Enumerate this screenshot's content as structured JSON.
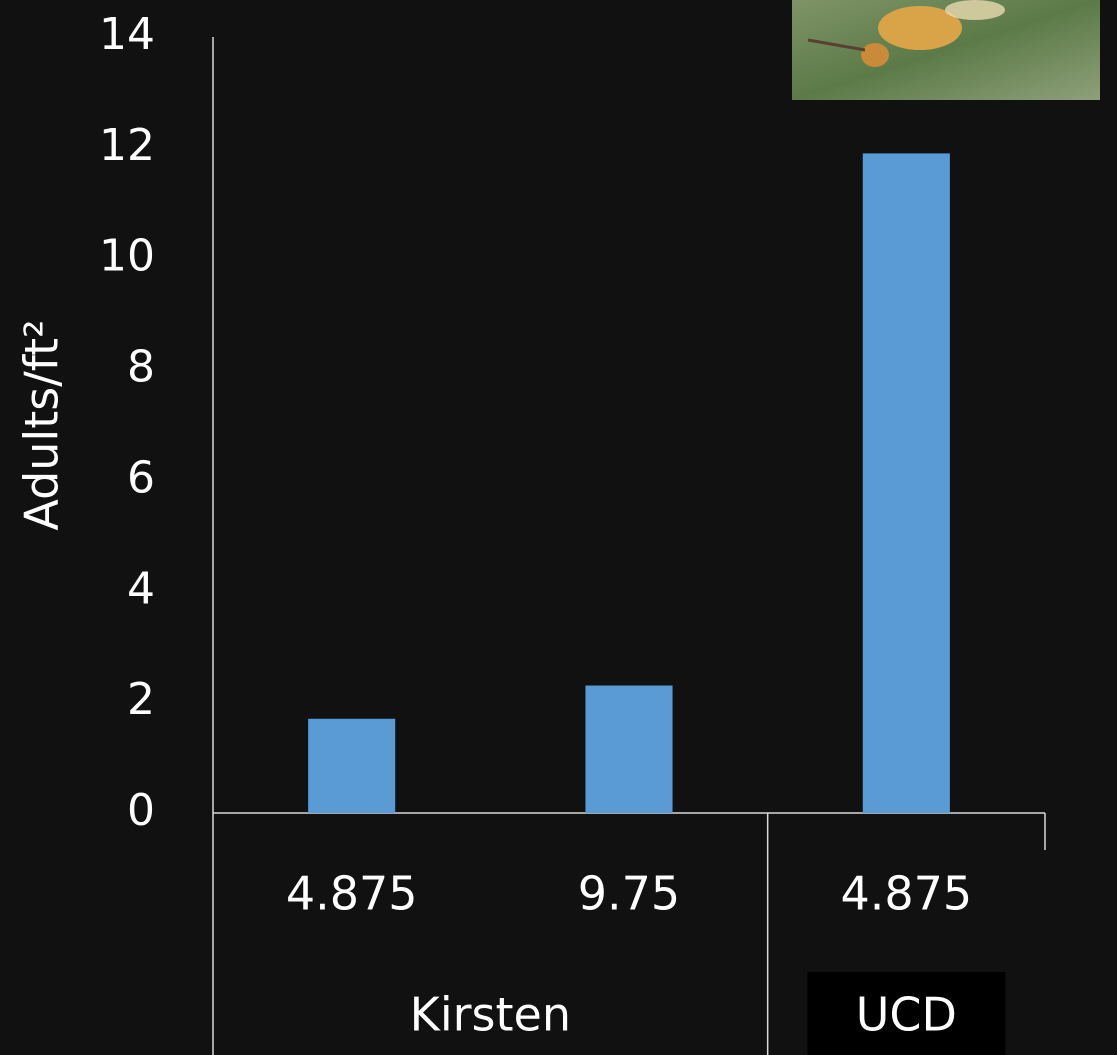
{
  "chart_data": {
    "type": "bar",
    "y_label": "Adults/ft²",
    "groups": [
      {
        "label": "Kirsten",
        "categories": [
          "4.875",
          "9.75"
        ],
        "values": [
          1.7,
          2.3
        ]
      },
      {
        "label": "UCD",
        "categories": [
          "4.875"
        ],
        "values": [
          11.9
        ]
      }
    ],
    "color": "#5b9bd5",
    "ylim": [
      0,
      14
    ],
    "yticks": [
      0,
      2,
      4,
      6,
      8,
      10,
      12,
      14
    ],
    "grid": false
  }
}
